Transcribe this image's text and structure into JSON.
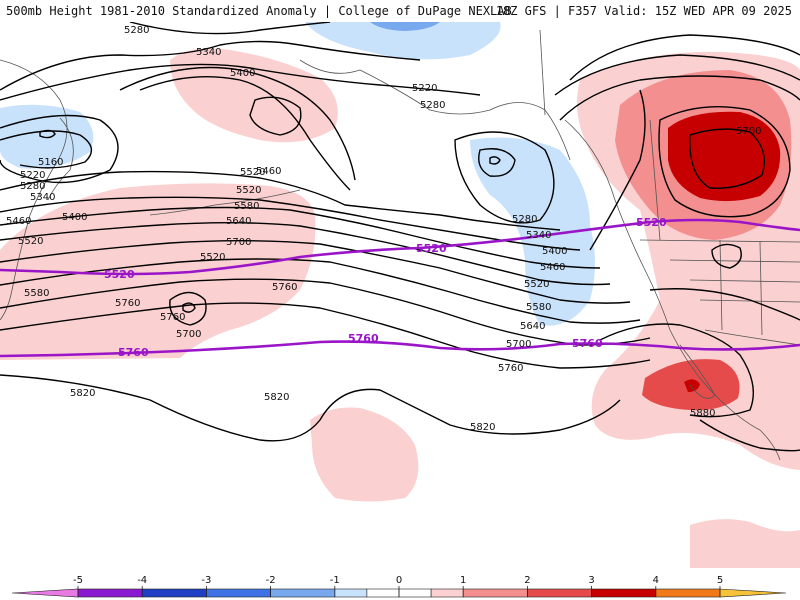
{
  "header": {
    "title": "500mb Height 1981-2010 Standardized Anomaly | College of DuPage NEXLAB",
    "run": "18Z GFS | F357 Valid: 15Z WED APR 09 2025"
  },
  "colors": {
    "contour": "#000000",
    "highlight_contour": "#9a14c8",
    "coast": "#555555"
  },
  "map": {
    "contour_labels": [
      "5280",
      "5340",
      "5400",
      "5160",
      "5220",
      "5280",
      "5340",
      "5400",
      "5460",
      "5520",
      "5580",
      "5460",
      "5520",
      "5580",
      "5640",
      "5700",
      "5520",
      "5760",
      "5700",
      "5760",
      "5820",
      "5820",
      "5220",
      "5280",
      "5280",
      "5340",
      "5400",
      "5460",
      "5520",
      "5580",
      "5640",
      "5700",
      "5760",
      "5820",
      "5700",
      "5880",
      "5520",
      "5760"
    ],
    "highlight_labels": [
      "5520",
      "5520",
      "5520",
      "5760",
      "5760",
      "5760"
    ]
  },
  "colorbar": {
    "ticks": [
      "-5",
      "-4",
      "-3",
      "-2",
      "-1",
      "0",
      "1",
      "2",
      "3",
      "4",
      "5"
    ],
    "bins": [
      {
        "color": "#e87be3"
      },
      {
        "color": "#8a1ad1"
      },
      {
        "color": "#1f3fc4"
      },
      {
        "color": "#3f72e4"
      },
      {
        "color": "#78a9ee"
      },
      {
        "color": "#c9e2fb"
      },
      {
        "color": "#ffffff"
      },
      {
        "color": "#ffffff"
      },
      {
        "color": "#fbd0d0"
      },
      {
        "color": "#f38f8f"
      },
      {
        "color": "#e64b4b"
      },
      {
        "color": "#c60000"
      },
      {
        "color": "#f07a1a"
      },
      {
        "color": "#f6c23a"
      }
    ]
  }
}
